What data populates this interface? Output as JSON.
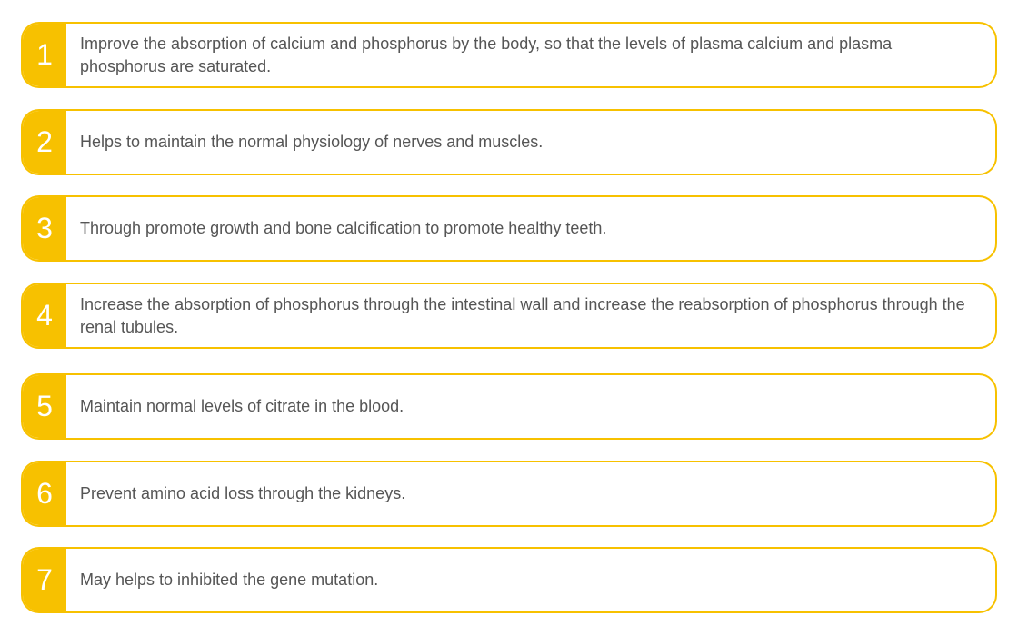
{
  "accent_color": "#f7c100",
  "items": [
    {
      "number": "1",
      "text": "Improve the absorption of calcium and phosphorus by the body, so that the levels of plasma calcium and plasma phosphorus are saturated."
    },
    {
      "number": "2",
      "text": "Helps to maintain the normal physiology of nerves and muscles."
    },
    {
      "number": "3",
      "text": "Through promote growth and bone calcification to promote healthy teeth."
    },
    {
      "number": "4",
      "text": "Increase the absorption of phosphorus through the intestinal wall and increase the reabsorption of phosphorus through the renal tubules."
    },
    {
      "number": "5",
      "text": "Maintain normal levels of citrate in the blood."
    },
    {
      "number": "6",
      "text": "Prevent amino acid loss through the kidneys."
    },
    {
      "number": "7",
      "text": "May helps to inhibited the gene mutation."
    }
  ]
}
